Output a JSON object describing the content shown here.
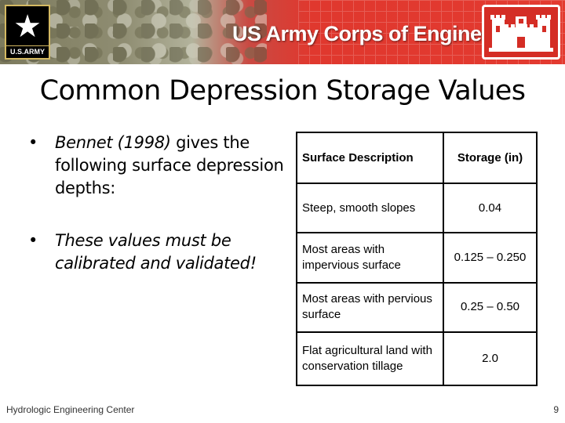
{
  "header": {
    "army_logo_text": "U.S.ARMY",
    "org_name": "US Army Corps of Engineers",
    "colors": {
      "red": "#e0382e",
      "olive": "#7d7b5e",
      "gold": "#d4b962"
    }
  },
  "slide": {
    "title": "Common Depression Storage Values",
    "bullet1": {
      "citation": "Bennet (1998)",
      "text": " gives the following surface depression depths:"
    },
    "bullet2": "These values must be calibrated and validated!"
  },
  "table": {
    "headers": [
      "Surface Description",
      "Storage (in)"
    ],
    "rows": [
      [
        "Steep, smooth slopes",
        "0.04"
      ],
      [
        "Most areas with impervious surface",
        "0.125 – 0.250"
      ],
      [
        "Most areas with pervious surface",
        "0.25 – 0.50"
      ],
      [
        "Flat agricultural land with conservation tillage",
        "2.0"
      ]
    ]
  },
  "footer": {
    "org": "Hydrologic Engineering Center",
    "page": "9"
  }
}
